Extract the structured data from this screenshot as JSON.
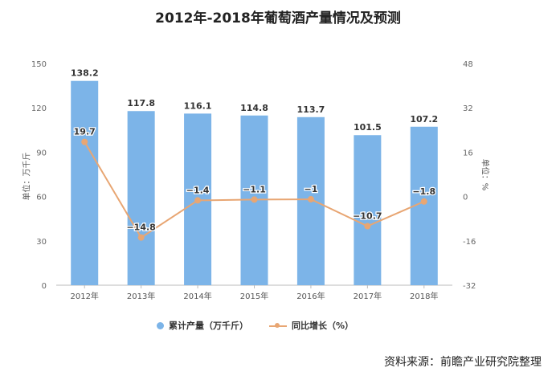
{
  "title": "2012年-2018年葡萄酒产量情况及预测",
  "source": "资料来源：前瞻产业研究院整理",
  "colors": {
    "bar": "#7cb4e8",
    "line": "#e8a673",
    "axis": "#999999"
  },
  "chart_data": {
    "type": "bar",
    "title": "2012年-2018年葡萄酒产量情况及预测",
    "categories": [
      "2012年",
      "2013年",
      "2014年",
      "2015年",
      "2016年",
      "2017年",
      "2018年"
    ],
    "series": [
      {
        "name": "累计产量（万千斤）",
        "type": "bar",
        "axis": "left",
        "values": [
          138.2,
          117.8,
          116.1,
          114.8,
          113.7,
          101.5,
          107.2
        ],
        "labels": [
          "138.2",
          "117.8",
          "116.1",
          "114.8",
          "113.7",
          "101.5",
          "107.2"
        ]
      },
      {
        "name": "同比增长（%）",
        "type": "line",
        "axis": "right",
        "values": [
          19.7,
          -14.8,
          -1.4,
          -1.1,
          -1,
          -10.7,
          -1.8
        ],
        "labels": [
          "19.7",
          "−14.8",
          "−1.4",
          "−1.1",
          "−1",
          "−10.7",
          "−1.8"
        ]
      }
    ],
    "y_left": {
      "label": "单位：万千斤",
      "ylim": [
        0,
        150
      ],
      "ticks": [
        "0",
        "30",
        "60",
        "90",
        "120",
        "150"
      ]
    },
    "y_right": {
      "label": "单位：%",
      "ylim": [
        -32,
        48
      ],
      "ticks": [
        "-32",
        "-16",
        "0",
        "16",
        "32",
        "48"
      ]
    },
    "legend_position": "bottom",
    "grid": false
  },
  "legend": {
    "bar_label": "累计产量（万千斤）",
    "line_label": "同比增长（%）"
  }
}
